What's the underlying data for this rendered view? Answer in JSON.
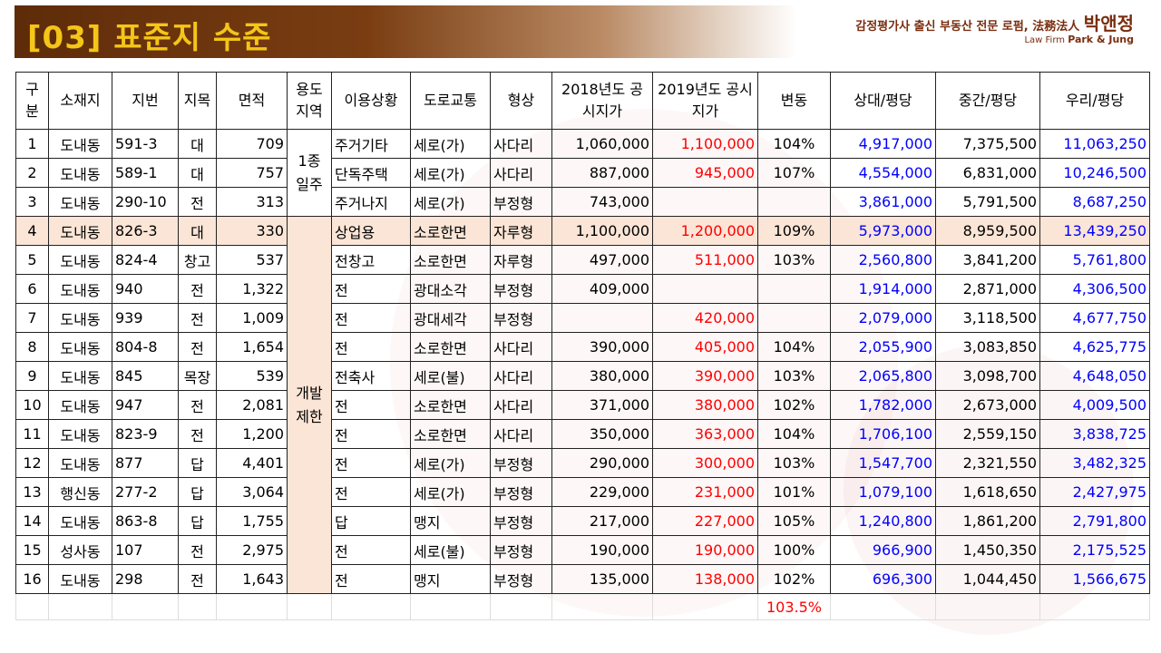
{
  "header": {
    "title": "[03] 표준지 수준",
    "firm_line": "감정평가사 출신 부동산 전문 로펌, 法務法人",
    "firm_name": "박앤정",
    "firm_en_prefix": "Law Firm",
    "firm_en_name": "Park & Jung"
  },
  "table": {
    "headers": [
      "구분",
      "소재지",
      "지번",
      "지목",
      "면적",
      "용도지역",
      "이용상황",
      "도로교통",
      "형상",
      "2018년도 공시지가",
      "2019년도 공시지가",
      "변동",
      "상대/평당",
      "중간/평당",
      "우리/평당"
    ],
    "zones": [
      "1종 일주",
      "개발 제한"
    ],
    "rows": [
      {
        "no": "1",
        "loc": "도내동",
        "lot": "591-3",
        "cat": "대",
        "area": "709",
        "use": "주거기타",
        "road": "세로(가)",
        "shape": "사다리",
        "p2018": "1,060,000",
        "p2019": "1,100,000",
        "chg": "104%",
        "opp": "4,917,000",
        "mid": "7,375,500",
        "ours": "11,063,250"
      },
      {
        "no": "2",
        "loc": "도내동",
        "lot": "589-1",
        "cat": "대",
        "area": "757",
        "use": "단독주택",
        "road": "세로(가)",
        "shape": "사다리",
        "p2018": "887,000",
        "p2019": "945,000",
        "chg": "107%",
        "opp": "4,554,000",
        "mid": "6,831,000",
        "ours": "10,246,500"
      },
      {
        "no": "3",
        "loc": "도내동",
        "lot": "290-10",
        "cat": "전",
        "area": "313",
        "use": "주거나지",
        "road": "세로(가)",
        "shape": "부정형",
        "p2018": "743,000",
        "p2019": "",
        "chg": "",
        "opp": "3,861,000",
        "mid": "5,791,500",
        "ours": "8,687,250"
      },
      {
        "no": "4",
        "loc": "도내동",
        "lot": "826-3",
        "cat": "대",
        "area": "330",
        "use": "상업용",
        "road": "소로한면",
        "shape": "자루형",
        "p2018": "1,100,000",
        "p2019": "1,200,000",
        "chg": "109%",
        "opp": "5,973,000",
        "mid": "8,959,500",
        "ours": "13,439,250"
      },
      {
        "no": "5",
        "loc": "도내동",
        "lot": "824-4",
        "cat": "창고",
        "area": "537",
        "use": "전창고",
        "road": "소로한면",
        "shape": "자루형",
        "p2018": "497,000",
        "p2019": "511,000",
        "chg": "103%",
        "opp": "2,560,800",
        "mid": "3,841,200",
        "ours": "5,761,800"
      },
      {
        "no": "6",
        "loc": "도내동",
        "lot": "940",
        "cat": "전",
        "area": "1,322",
        "use": "전",
        "road": "광대소각",
        "shape": "부정형",
        "p2018": "409,000",
        "p2019": "",
        "chg": "",
        "opp": "1,914,000",
        "mid": "2,871,000",
        "ours": "4,306,500"
      },
      {
        "no": "7",
        "loc": "도내동",
        "lot": "939",
        "cat": "전",
        "area": "1,009",
        "use": "전",
        "road": "광대세각",
        "shape": "부정형",
        "p2018": "",
        "p2019": "420,000",
        "chg": "",
        "opp": "2,079,000",
        "mid": "3,118,500",
        "ours": "4,677,750"
      },
      {
        "no": "8",
        "loc": "도내동",
        "lot": "804-8",
        "cat": "전",
        "area": "1,654",
        "use": "전",
        "road": "소로한면",
        "shape": "사다리",
        "p2018": "390,000",
        "p2019": "405,000",
        "chg": "104%",
        "opp": "2,055,900",
        "mid": "3,083,850",
        "ours": "4,625,775"
      },
      {
        "no": "9",
        "loc": "도내동",
        "lot": "845",
        "cat": "목장",
        "area": "539",
        "use": "전축사",
        "road": "세로(불)",
        "shape": "사다리",
        "p2018": "380,000",
        "p2019": "390,000",
        "chg": "103%",
        "opp": "2,065,800",
        "mid": "3,098,700",
        "ours": "4,648,050"
      },
      {
        "no": "10",
        "loc": "도내동",
        "lot": "947",
        "cat": "전",
        "area": "2,081",
        "use": "전",
        "road": "소로한면",
        "shape": "사다리",
        "p2018": "371,000",
        "p2019": "380,000",
        "chg": "102%",
        "opp": "1,782,000",
        "mid": "2,673,000",
        "ours": "4,009,500"
      },
      {
        "no": "11",
        "loc": "도내동",
        "lot": "823-9",
        "cat": "전",
        "area": "1,200",
        "use": "전",
        "road": "소로한면",
        "shape": "사다리",
        "p2018": "350,000",
        "p2019": "363,000",
        "chg": "104%",
        "opp": "1,706,100",
        "mid": "2,559,150",
        "ours": "3,838,725"
      },
      {
        "no": "12",
        "loc": "도내동",
        "lot": "877",
        "cat": "답",
        "area": "4,401",
        "use": "전",
        "road": "세로(가)",
        "shape": "부정형",
        "p2018": "290,000",
        "p2019": "300,000",
        "chg": "103%",
        "opp": "1,547,700",
        "mid": "2,321,550",
        "ours": "3,482,325"
      },
      {
        "no": "13",
        "loc": "행신동",
        "lot": "277-2",
        "cat": "답",
        "area": "3,064",
        "use": "전",
        "road": "세로(가)",
        "shape": "부정형",
        "p2018": "229,000",
        "p2019": "231,000",
        "chg": "101%",
        "opp": "1,079,100",
        "mid": "1,618,650",
        "ours": "2,427,975"
      },
      {
        "no": "14",
        "loc": "도내동",
        "lot": "863-8",
        "cat": "답",
        "area": "1,755",
        "use": "답",
        "road": "맹지",
        "shape": "부정형",
        "p2018": "217,000",
        "p2019": "227,000",
        "chg": "105%",
        "opp": "1,240,800",
        "mid": "1,861,200",
        "ours": "2,791,800"
      },
      {
        "no": "15",
        "loc": "성사동",
        "lot": "107",
        "cat": "전",
        "area": "2,975",
        "use": "전",
        "road": "세로(불)",
        "shape": "부정형",
        "p2018": "190,000",
        "p2019": "190,000",
        "chg": "100%",
        "opp": "966,900",
        "mid": "1,450,350",
        "ours": "2,175,525"
      },
      {
        "no": "16",
        "loc": "도내동",
        "lot": "298",
        "cat": "전",
        "area": "1,643",
        "use": "전",
        "road": "맹지",
        "shape": "부정형",
        "p2018": "135,000",
        "p2019": "138,000",
        "chg": "102%",
        "opp": "696,300",
        "mid": "1,044,450",
        "ours": "1,566,675"
      }
    ],
    "average_change": "103.5%"
  },
  "colors": {
    "title_bg": "#6b3410",
    "title_text": "#f5c518",
    "firm_text": "#7a2d0e",
    "highlight_row": "#fbe5d6",
    "price_2019": "#ff0000",
    "opp_per_pyeong": "#0000ff",
    "ours_per_pyeong": "#0000ff"
  }
}
